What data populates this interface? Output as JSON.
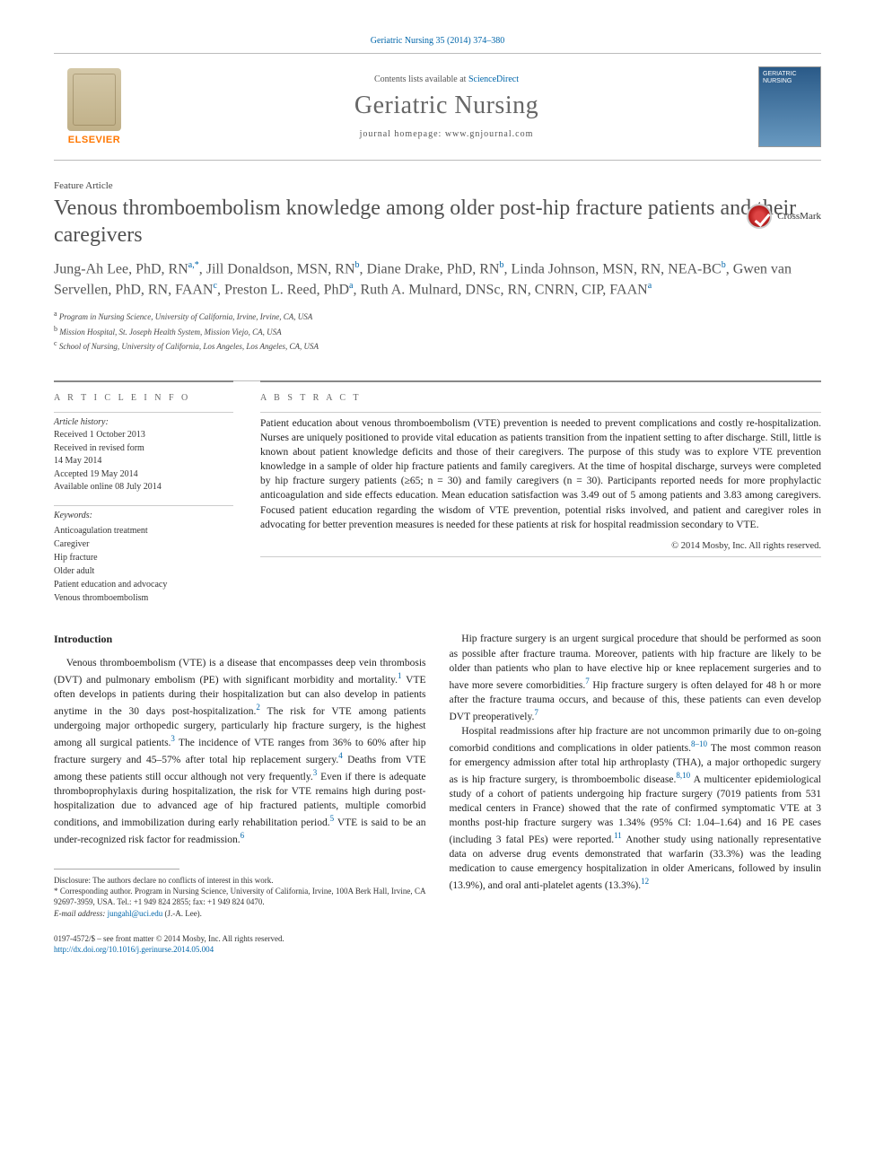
{
  "citation": "Geriatric Nursing 35 (2014) 374–380",
  "header": {
    "contents_prefix": "Contents lists available at ",
    "contents_link": "ScienceDirect",
    "journal_name": "Geriatric Nursing",
    "homepage_label": "journal homepage: ",
    "homepage_url": "www.gnjournal.com",
    "publisher_logo_text": "ELSEVIER",
    "cover_text": "GERIATRIC NURSING"
  },
  "article": {
    "type": "Feature Article",
    "title": "Venous thromboembolism knowledge among older post-hip fracture patients and their caregivers",
    "crossmark_label": "CrossMark"
  },
  "authors_html": "Jung-Ah Lee, PhD, RN<sup>a,*</sup>, Jill Donaldson, MSN, RN<sup>b</sup>, Diane Drake, PhD, RN<sup>b</sup>, Linda Johnson, MSN, RN, NEA-BC<sup>b</sup>, Gwen van Servellen, PhD, RN, FAAN<sup>c</sup>, Preston L. Reed, PhD<sup>a</sup>, Ruth A. Mulnard, DNSc, RN, CNRN, CIP, FAAN<sup>a</sup>",
  "affiliations": [
    "Program in Nursing Science, University of California, Irvine, Irvine, CA, USA",
    "Mission Hospital, St. Joseph Health System, Mission Viejo, CA, USA",
    "School of Nursing, University of California, Los Angeles, Los Angeles, CA, USA"
  ],
  "affiliation_marks": [
    "a",
    "b",
    "c"
  ],
  "article_info": {
    "heading": "a r t i c l e   i n f o",
    "history_label": "Article history:",
    "received": "Received 1 October 2013",
    "revised": "Received in revised form\n14 May 2014",
    "accepted": "Accepted 19 May 2014",
    "online": "Available online 08 July 2014",
    "keywords_label": "Keywords:",
    "keywords": [
      "Anticoagulation treatment",
      "Caregiver",
      "Hip fracture",
      "Older adult",
      "Patient education and advocacy",
      "Venous thromboembolism"
    ]
  },
  "abstract": {
    "heading": "a b s t r a c t",
    "text": "Patient education about venous thromboembolism (VTE) prevention is needed to prevent complications and costly re-hospitalization. Nurses are uniquely positioned to provide vital education as patients transition from the inpatient setting to after discharge. Still, little is known about patient knowledge deficits and those of their caregivers. The purpose of this study was to explore VTE prevention knowledge in a sample of older hip fracture patients and family caregivers. At the time of hospital discharge, surveys were completed by hip fracture surgery patients (≥65; n = 30) and family caregivers (n = 30). Participants reported needs for more prophylactic anticoagulation and side effects education. Mean education satisfaction was 3.49 out of 5 among patients and 3.83 among caregivers. Focused patient education regarding the wisdom of VTE prevention, potential risks involved, and patient and caregiver roles in advocating for better prevention measures is needed for these patients at risk for hospital readmission secondary to VTE.",
    "copyright": "© 2014 Mosby, Inc. All rights reserved."
  },
  "intro_heading": "Introduction",
  "body_left_paras": [
    "Venous thromboembolism (VTE) is a disease that encompasses deep vein thrombosis (DVT) and pulmonary embolism (PE) with significant morbidity and mortality.<sup class='ref'>1</sup> VTE often develops in patients during their hospitalization but can also develop in patients anytime in the 30 days post-hospitalization.<sup class='ref'>2</sup> The risk for VTE among patients undergoing major orthopedic surgery, particularly hip fracture surgery, is the highest among all surgical patients.<sup class='ref'>3</sup> The incidence of VTE ranges from 36% to 60% after hip fracture surgery and 45–57% after total hip replacement surgery.<sup class='ref'>4</sup> Deaths from VTE among these patients still occur although not very frequently.<sup class='ref'>3</sup> Even if there is adequate thromboprophylaxis during hospitalization, the risk for VTE remains high during post-hospitalization due to advanced age of hip fractured patients, multiple comorbid conditions, and immobilization during early rehabilitation period.<sup class='ref'>5</sup> VTE is said to be an under-recognized risk factor for readmission.<sup class='ref'>6</sup>"
  ],
  "body_right_paras": [
    "Hip fracture surgery is an urgent surgical procedure that should be performed as soon as possible after fracture trauma. Moreover, patients with hip fracture are likely to be older than patients who plan to have elective hip or knee replacement surgeries and to have more severe comorbidities.<sup class='ref'>7</sup> Hip fracture surgery is often delayed for 48 h or more after the fracture trauma occurs, and because of this, these patients can even develop DVT preoperatively.<sup class='ref'>7</sup>",
    "Hospital readmissions after hip fracture are not uncommon primarily due to on-going comorbid conditions and complications in older patients.<sup class='ref'>8–10</sup> The most common reason for emergency admission after total hip arthroplasty (THA), a major orthopedic surgery as is hip fracture surgery, is thromboembolic disease.<sup class='ref'>8,10</sup> A multicenter epidemiological study of a cohort of patients undergoing hip fracture surgery (7019 patients from 531 medical centers in France) showed that the rate of confirmed symptomatic VTE at 3 months post-hip fracture surgery was 1.34% (95% CI: 1.04–1.64) and 16 PE cases (including 3 fatal PEs) were reported.<sup class='ref'>11</sup> Another study using nationally representative data on adverse drug events demonstrated that warfarin (33.3%) was the leading medication to cause emergency hospitalization in older Americans, followed by insulin (13.9%), and oral anti-platelet agents (13.3%).<sup class='ref'>12</sup>"
  ],
  "footnotes": {
    "disclosure": "Disclosure: The authors declare no conflicts of interest in this work.",
    "corresponding": "* Corresponding author. Program in Nursing Science, University of California, Irvine, 100A Berk Hall, Irvine, CA 92697-3959, USA. Tel.: +1 949 824 2855; fax: +1 949 824 0470.",
    "email_label": "E-mail address: ",
    "email": "jungahl@uci.edu",
    "email_suffix": " (J.-A. Lee)."
  },
  "bottom": {
    "line1": "0197-4572/$ – see front matter © 2014 Mosby, Inc. All rights reserved.",
    "doi": "http://dx.doi.org/10.1016/j.gerinurse.2014.05.004"
  },
  "colors": {
    "link": "#0066aa",
    "muted": "#666666",
    "elsevier_orange": "#ff7700"
  }
}
